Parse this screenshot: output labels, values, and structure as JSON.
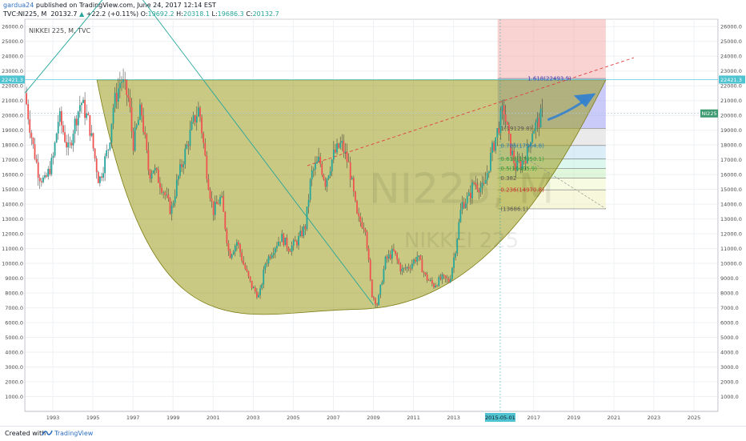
{
  "header": {
    "user": "gardua24",
    "published": " published on TradingView.com, June 24, 2017 12:14 EST",
    "symbol": "TVC:NI225, M",
    "close_value": "20132.7",
    "change": "+22.2 (+0.11%)",
    "ohlc": {
      "o_label": "O:",
      "o": "19692.2",
      "h_label": "H:",
      "h": "20318.1",
      "l_label": "L:",
      "l": "19686.3",
      "c_label": "C:",
      "c": "20132.7"
    }
  },
  "legend_label": "NIKKEI 225, M, TVC",
  "watermark": {
    "symbol": "NI225, M",
    "name": "NIKKEI 225"
  },
  "footer": {
    "created_with": "Created with",
    "brand": "TradingView"
  },
  "colors": {
    "up": "#26a69a",
    "down": "#ef5350",
    "bowl": "#9c9c1e",
    "trend": "#26a69a",
    "arrow": "#2f7fd1",
    "price_tag": "#3d9970"
  },
  "chart_data": {
    "type": "candlestick",
    "title": "NIKKEI 225, M, TVC",
    "xlim": [
      1991.6,
      2026.2
    ],
    "ylim": [
      0,
      26500
    ],
    "x_ticks": [
      "1993",
      "1995",
      "1997",
      "1999",
      "2001",
      "2003",
      "2005",
      "2007",
      "2009",
      "2011",
      "2013",
      "2017",
      "2019",
      "2021",
      "2023",
      "2025"
    ],
    "x_tick_values": [
      1993,
      1995,
      1997,
      1999,
      2001,
      2003,
      2005,
      2007,
      2009,
      2011,
      2013,
      2017,
      2019,
      2021,
      2023,
      2025
    ],
    "x_highlight": {
      "label": "2015-05-01",
      "x": 2015.33
    },
    "y_ticks": [
      "1000.0",
      "2000.0",
      "3000.0",
      "4000.0",
      "5000.0",
      "6000.0",
      "7000.0",
      "8000.0",
      "9000.0",
      "10000.0",
      "11000.0",
      "12000.0",
      "13000.0",
      "14000.0",
      "15000.0",
      "16000.0",
      "17000.0",
      "18000.0",
      "19000.0",
      "20000.0",
      "21000.0",
      "22000.0",
      "23000.0",
      "24000.0",
      "25000.0",
      "26000.0"
    ],
    "y_tick_values": [
      1000,
      2000,
      3000,
      4000,
      5000,
      6000,
      7000,
      8000,
      9000,
      10000,
      11000,
      12000,
      13000,
      14000,
      15000,
      16000,
      17000,
      18000,
      19000,
      20000,
      21000,
      22000,
      23000,
      24000,
      25000,
      26000
    ],
    "price_path": [
      [
        1991.6,
        21500
      ],
      [
        1992.0,
        18000
      ],
      [
        1992.3,
        16000
      ],
      [
        1992.6,
        15500
      ],
      [
        1993.0,
        17000
      ],
      [
        1993.3,
        20000
      ],
      [
        1993.8,
        17500
      ],
      [
        1994.0,
        19000
      ],
      [
        1994.4,
        21000
      ],
      [
        1994.8,
        19500
      ],
      [
        1995.3,
        15500
      ],
      [
        1995.8,
        18000
      ],
      [
        1996.0,
        20500
      ],
      [
        1996.4,
        22500
      ],
      [
        1996.8,
        21000
      ],
      [
        1997.0,
        18000
      ],
      [
        1997.4,
        20500
      ],
      [
        1997.8,
        16000
      ],
      [
        1998.0,
        16500
      ],
      [
        1998.5,
        15000
      ],
      [
        1998.9,
        13500
      ],
      [
        1999.2,
        15500
      ],
      [
        1999.6,
        17500
      ],
      [
        2000.0,
        19500
      ],
      [
        2000.3,
        20500
      ],
      [
        2000.7,
        16000
      ],
      [
        2001.0,
        13500
      ],
      [
        2001.4,
        14500
      ],
      [
        2001.8,
        10500
      ],
      [
        2002.2,
        11500
      ],
      [
        2002.5,
        10000
      ],
      [
        2002.9,
        8500
      ],
      [
        2003.3,
        7700
      ],
      [
        2003.6,
        10000
      ],
      [
        2004.0,
        11000
      ],
      [
        2004.4,
        11800
      ],
      [
        2004.8,
        11000
      ],
      [
        2005.2,
        11500
      ],
      [
        2005.6,
        12500
      ],
      [
        2005.9,
        16000
      ],
      [
        2006.3,
        17000
      ],
      [
        2006.6,
        15500
      ],
      [
        2007.0,
        17300
      ],
      [
        2007.4,
        18100
      ],
      [
        2007.8,
        16500
      ],
      [
        2008.2,
        13000
      ],
      [
        2008.6,
        12500
      ],
      [
        2008.9,
        8000
      ],
      [
        2009.2,
        7200
      ],
      [
        2009.6,
        10200
      ],
      [
        2010.0,
        10800
      ],
      [
        2010.4,
        9500
      ],
      [
        2010.8,
        9800
      ],
      [
        2011.2,
        10500
      ],
      [
        2011.6,
        9100
      ],
      [
        2012.0,
        8500
      ],
      [
        2012.4,
        9000
      ],
      [
        2012.8,
        8800
      ],
      [
        2013.1,
        11000
      ],
      [
        2013.4,
        14000
      ],
      [
        2013.8,
        14500
      ],
      [
        2014.0,
        15500
      ],
      [
        2014.5,
        15000
      ],
      [
        2014.9,
        17500
      ],
      [
        2015.2,
        19000
      ],
      [
        2015.5,
        20500
      ],
      [
        2015.8,
        18000
      ],
      [
        2016.1,
        16500
      ],
      [
        2016.4,
        16800
      ],
      [
        2016.7,
        17500
      ],
      [
        2016.9,
        19000
      ],
      [
        2017.2,
        19500
      ],
      [
        2017.47,
        20132.7
      ]
    ],
    "bowl": {
      "x_start": 1995.2,
      "x_end": 2020.6,
      "x_bottom": 2008.2,
      "y_rim": 22400,
      "y_bottom": 6900,
      "y_end": 22400
    },
    "fib_levels": [
      {
        "label": "1.618(22493.9)",
        "value": 22493.9
      },
      {
        "label": "1(19129.8)",
        "value": 19129.8
      },
      {
        "label": "0.786(17964.8)",
        "value": 17964.8
      },
      {
        "label": "0.618(17050.1)",
        "value": 17050.1
      },
      {
        "label": "0.5(16405.9)",
        "value": 16405.9
      },
      {
        "label": "0.382",
        "value": 15768
      },
      {
        "label": "0.236(14970.8)",
        "value": 14970.8
      },
      {
        "label": "(13686.1)",
        "value": 13686.1
      }
    ],
    "fib_x_range": [
      2015.2,
      2020.6
    ],
    "price_label": "22421.3",
    "price_label_value": 22421.3,
    "last_tag": "NI225",
    "last_value": 20132.7,
    "grid": true
  }
}
